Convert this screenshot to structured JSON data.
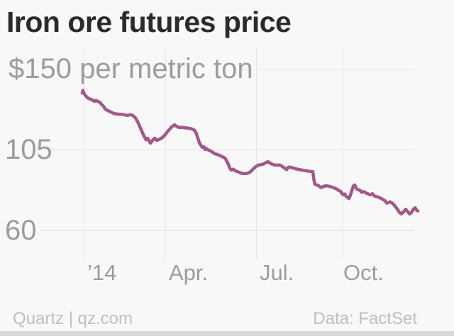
{
  "chart_data": {
    "type": "line",
    "title": "Iron ore futures price",
    "subtitle": "",
    "legend": "none",
    "grid": "on",
    "ylim": [
      44,
      161
    ],
    "y_axis": {
      "unit": "$ per metric ton",
      "ticks": [
        150,
        105,
        60
      ],
      "tick_labels": [
        "$150 per metric ton",
        "105",
        "60"
      ]
    },
    "x_axis": {
      "unit": "time (Dec 2013 - Nov 2014)",
      "ticks": [
        {
          "label": "’14",
          "pos": 0.004
        },
        {
          "label": "Apr.",
          "pos": 0.247
        },
        {
          "label": "Jul.",
          "pos": 0.518
        },
        {
          "label": "Oct.",
          "pos": 0.774
        }
      ]
    },
    "series": [
      {
        "name": "Iron ore futures price ($ per metric ton)",
        "color": "#a25889",
        "points": [
          [
            0.0,
            136.5
          ],
          [
            0.002,
            138.0
          ],
          [
            0.006,
            136.0
          ],
          [
            0.011,
            134.8
          ],
          [
            0.017,
            133.6
          ],
          [
            0.023,
            133.2
          ],
          [
            0.03,
            132.6
          ],
          [
            0.036,
            131.8
          ],
          [
            0.04,
            132.4
          ],
          [
            0.047,
            131.8
          ],
          [
            0.053,
            131.2
          ],
          [
            0.057,
            130.2
          ],
          [
            0.063,
            129.2
          ],
          [
            0.068,
            127.6
          ],
          [
            0.074,
            126.9
          ],
          [
            0.08,
            126.4
          ],
          [
            0.087,
            125.7
          ],
          [
            0.093,
            125.2
          ],
          [
            0.101,
            124.8
          ],
          [
            0.11,
            124.7
          ],
          [
            0.118,
            124.6
          ],
          [
            0.127,
            124.3
          ],
          [
            0.135,
            124.0
          ],
          [
            0.144,
            124.5
          ],
          [
            0.152,
            123.8
          ],
          [
            0.159,
            122.5
          ],
          [
            0.165,
            120.5
          ],
          [
            0.171,
            118.0
          ],
          [
            0.178,
            115.0
          ],
          [
            0.184,
            112.5
          ],
          [
            0.19,
            110.5
          ],
          [
            0.195,
            111.3
          ],
          [
            0.199,
            109.8
          ],
          [
            0.203,
            108.6
          ],
          [
            0.209,
            110.1
          ],
          [
            0.216,
            111.3
          ],
          [
            0.222,
            110.1
          ],
          [
            0.228,
            110.6
          ],
          [
            0.235,
            111.2
          ],
          [
            0.241,
            112.1
          ],
          [
            0.249,
            113.8
          ],
          [
            0.258,
            115.8
          ],
          [
            0.266,
            117.5
          ],
          [
            0.275,
            118.8
          ],
          [
            0.281,
            117.9
          ],
          [
            0.288,
            117.3
          ],
          [
            0.296,
            117.4
          ],
          [
            0.304,
            117.2
          ],
          [
            0.313,
            117.0
          ],
          [
            0.321,
            116.8
          ],
          [
            0.328,
            116.4
          ],
          [
            0.334,
            115.8
          ],
          [
            0.34,
            114.0
          ],
          [
            0.345,
            111.0
          ],
          [
            0.349,
            108.8
          ],
          [
            0.353,
            107.5
          ],
          [
            0.357,
            106.3
          ],
          [
            0.362,
            106.7
          ],
          [
            0.366,
            105.0
          ],
          [
            0.37,
            105.6
          ],
          [
            0.376,
            104.7
          ],
          [
            0.383,
            104.2
          ],
          [
            0.389,
            103.4
          ],
          [
            0.395,
            102.7
          ],
          [
            0.402,
            102.3
          ],
          [
            0.408,
            101.8
          ],
          [
            0.414,
            101.4
          ],
          [
            0.419,
            100.8
          ],
          [
            0.425,
            100.3
          ],
          [
            0.431,
            98.5
          ],
          [
            0.436,
            96.5
          ],
          [
            0.44,
            94.5
          ],
          [
            0.444,
            93.6
          ],
          [
            0.45,
            94.1
          ],
          [
            0.455,
            93.3
          ],
          [
            0.461,
            92.8
          ],
          [
            0.467,
            92.4
          ],
          [
            0.474,
            91.8
          ],
          [
            0.482,
            91.6
          ],
          [
            0.49,
            91.7
          ],
          [
            0.499,
            92.3
          ],
          [
            0.505,
            93.3
          ],
          [
            0.512,
            94.7
          ],
          [
            0.518,
            95.6
          ],
          [
            0.524,
            96.3
          ],
          [
            0.531,
            96.6
          ],
          [
            0.537,
            96.7
          ],
          [
            0.543,
            97.3
          ],
          [
            0.55,
            98.0
          ],
          [
            0.554,
            98.3
          ],
          [
            0.56,
            97.4
          ],
          [
            0.567,
            96.8
          ],
          [
            0.573,
            96.4
          ],
          [
            0.579,
            96.3
          ],
          [
            0.586,
            96.4
          ],
          [
            0.592,
            96.2
          ],
          [
            0.598,
            95.3
          ],
          [
            0.605,
            94.4
          ],
          [
            0.609,
            93.8
          ],
          [
            0.613,
            95.0
          ],
          [
            0.619,
            95.3
          ],
          [
            0.626,
            94.9
          ],
          [
            0.632,
            94.5
          ],
          [
            0.639,
            94.2
          ],
          [
            0.645,
            93.9
          ],
          [
            0.651,
            93.7
          ],
          [
            0.657,
            93.5
          ],
          [
            0.664,
            93.3
          ],
          [
            0.67,
            93.1
          ],
          [
            0.677,
            92.9
          ],
          [
            0.683,
            92.8
          ],
          [
            0.687,
            92.7
          ],
          [
            0.689,
            90.0
          ],
          [
            0.691,
            87.5
          ],
          [
            0.693,
            85.8
          ],
          [
            0.698,
            85.3
          ],
          [
            0.704,
            85.0
          ],
          [
            0.708,
            84.2
          ],
          [
            0.713,
            83.8
          ],
          [
            0.717,
            84.4
          ],
          [
            0.723,
            84.7
          ],
          [
            0.727,
            84.9
          ],
          [
            0.734,
            84.6
          ],
          [
            0.74,
            84.4
          ],
          [
            0.746,
            83.9
          ],
          [
            0.753,
            83.5
          ],
          [
            0.759,
            82.9
          ],
          [
            0.765,
            82.2
          ],
          [
            0.77,
            81.7
          ],
          [
            0.774,
            80.5
          ],
          [
            0.778,
            79.8
          ],
          [
            0.782,
            80.3
          ],
          [
            0.786,
            79.0
          ],
          [
            0.791,
            78.3
          ],
          [
            0.795,
            77.7
          ],
          [
            0.799,
            79.5
          ],
          [
            0.803,
            82.0
          ],
          [
            0.808,
            84.8
          ],
          [
            0.812,
            85.3
          ],
          [
            0.816,
            83.5
          ],
          [
            0.82,
            82.8
          ],
          [
            0.827,
            82.4
          ],
          [
            0.833,
            81.2
          ],
          [
            0.839,
            81.6
          ],
          [
            0.846,
            80.8
          ],
          [
            0.852,
            80.3
          ],
          [
            0.858,
            79.8
          ],
          [
            0.865,
            80.4
          ],
          [
            0.871,
            79.1
          ],
          [
            0.877,
            78.8
          ],
          [
            0.884,
            78.4
          ],
          [
            0.89,
            77.8
          ],
          [
            0.896,
            77.2
          ],
          [
            0.903,
            76.4
          ],
          [
            0.907,
            75.2
          ],
          [
            0.913,
            75.5
          ],
          [
            0.918,
            75.9
          ],
          [
            0.924,
            75.1
          ],
          [
            0.93,
            74.0
          ],
          [
            0.937,
            72.3
          ],
          [
            0.941,
            71.2
          ],
          [
            0.945,
            70.0
          ],
          [
            0.951,
            69.2
          ],
          [
            0.956,
            70.0
          ],
          [
            0.96,
            70.9
          ],
          [
            0.964,
            71.8
          ],
          [
            0.968,
            70.8
          ],
          [
            0.975,
            69.2
          ],
          [
            0.981,
            70.0
          ],
          [
            0.987,
            71.8
          ],
          [
            0.992,
            72.6
          ],
          [
            0.996,
            71.3
          ],
          [
            1.0,
            70.8
          ]
        ]
      }
    ],
    "source": "Data: FactSet",
    "credit": "Quartz | qz.com"
  }
}
